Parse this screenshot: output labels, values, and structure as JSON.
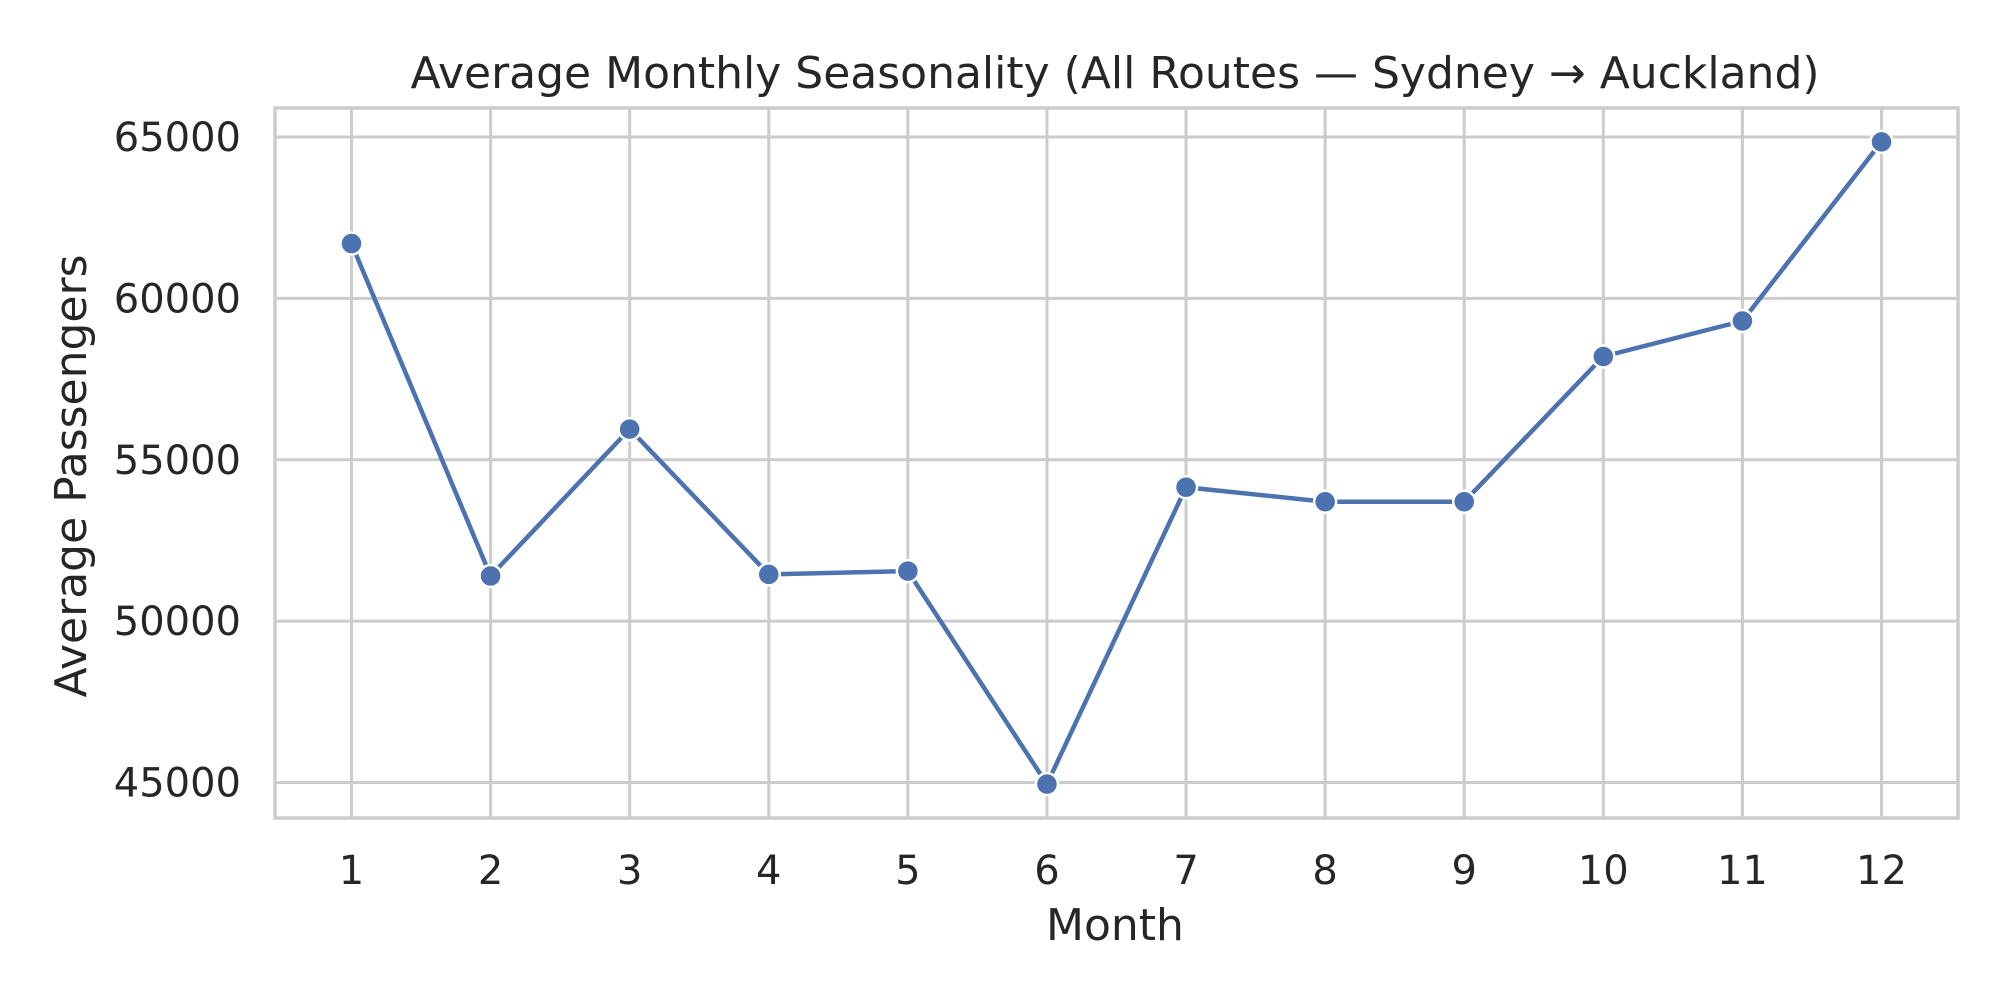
{
  "chart_data": {
    "type": "line",
    "title": "Average Monthly Seasonality (All Routes — Sydney → Auckland)",
    "xlabel": "Month",
    "ylabel": "Average Passengers",
    "x": [
      1,
      2,
      3,
      4,
      5,
      6,
      7,
      8,
      9,
      10,
      11,
      12
    ],
    "x_tick_labels": [
      "1",
      "2",
      "3",
      "4",
      "5",
      "6",
      "7",
      "8",
      "9",
      "10",
      "11",
      "12"
    ],
    "y_ticks": [
      45000,
      50000,
      55000,
      60000,
      65000
    ],
    "y_tick_labels": [
      "45000",
      "50000",
      "55000",
      "60000",
      "65000"
    ],
    "xlim": [
      0.45,
      12.55
    ],
    "ylim": [
      43900,
      65900
    ],
    "grid": true,
    "series": [
      {
        "color": "#4c72b0",
        "values": [
          61700,
          51400,
          55950,
          51450,
          51550,
          44950,
          54150,
          53700,
          53700,
          58200,
          59300,
          64850
        ]
      }
    ]
  }
}
